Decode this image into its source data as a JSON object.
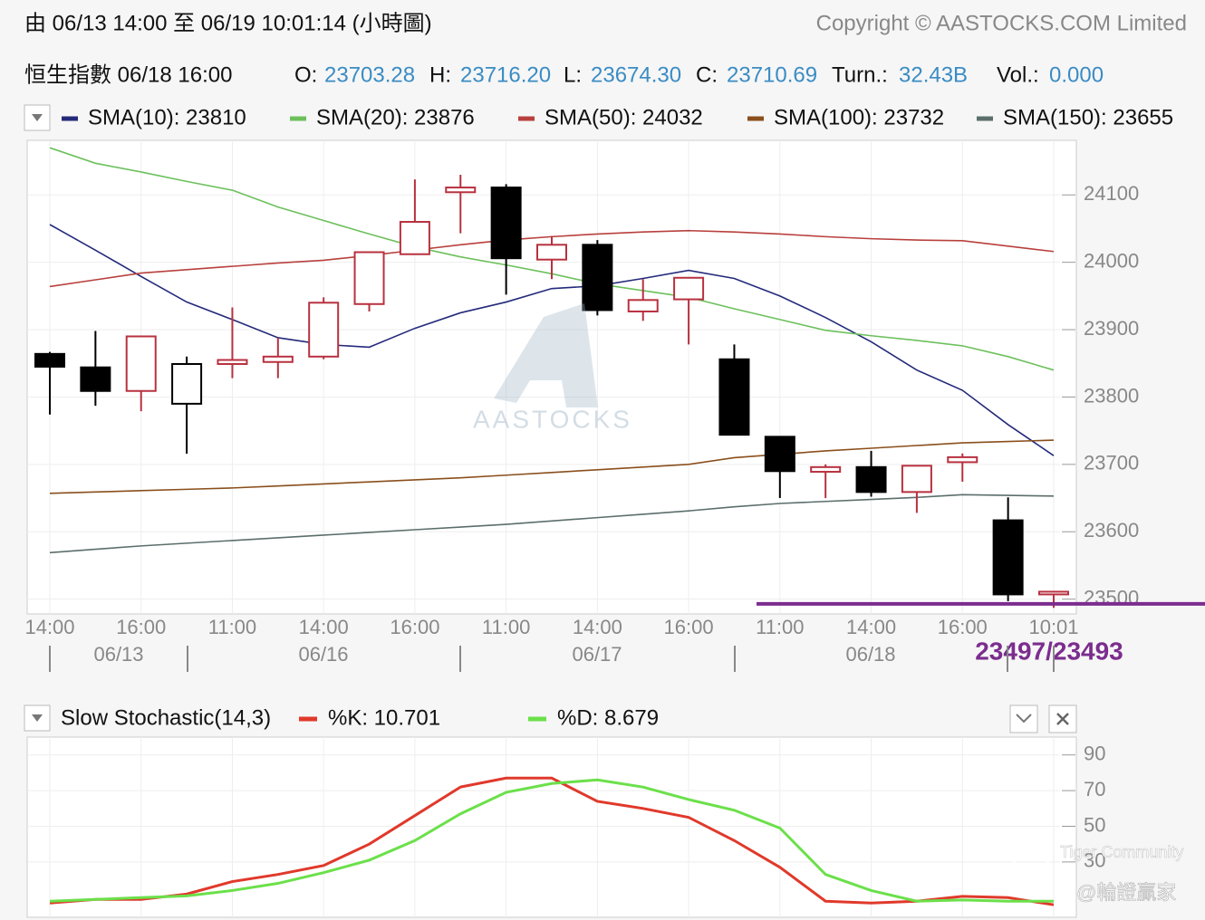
{
  "header": {
    "title": "由  06/13 14:00 至  06/19 10:01:14 (小時圖)",
    "copyright": "Copyright © AASTOCKS.COM Limited",
    "instrument": "恒生指數  06/18 16:00",
    "fields": [
      {
        "label": "O:",
        "value": "23703.28"
      },
      {
        "label": "H:",
        "value": "23716.20"
      },
      {
        "label": "L:",
        "value": "23674.30"
      },
      {
        "label": "C:",
        "value": "23710.69"
      },
      {
        "label": "Turn.:",
        "value": "32.43B"
      },
      {
        "label": "Vol.:",
        "value": "0.000"
      }
    ]
  },
  "watermarks": [
    "AASTOCKS",
    "Tiger Community",
    "@輪證贏家"
  ],
  "chart_data": [
    {
      "type": "candlestick",
      "categories": [
        "14:00",
        null,
        "16:00",
        null,
        "11:00",
        null,
        "14:00",
        null,
        "16:00",
        null,
        "11:00",
        null,
        "14:00",
        null,
        "16:00",
        null,
        "11:00",
        null,
        "14:00",
        null,
        "16:00",
        null,
        "10:01"
      ],
      "dates": [
        "06/13",
        "06/16",
        "06/17",
        "06/18"
      ],
      "open": [
        23864,
        23844,
        23809,
        23790,
        23849,
        23852,
        23860,
        23938,
        24012,
        24104,
        24111,
        24004,
        24026,
        23927,
        23945,
        23856,
        23741,
        23689,
        23696,
        23659,
        23703.28,
        23617,
        23507
      ],
      "high": [
        23867,
        23898,
        23890,
        23860,
        23933,
        23888,
        23948,
        24015,
        24123,
        24130,
        24116,
        24039,
        24033,
        23975,
        23977,
        23878,
        23741,
        23700,
        23720,
        23698,
        23716.2,
        23651,
        23511
      ],
      "low": [
        23774,
        23787,
        23779,
        23716,
        23828,
        23828,
        23856,
        23927,
        24012,
        24043,
        23952,
        23975,
        23921,
        23913,
        23878,
        23744,
        23650,
        23650,
        23652,
        23628,
        23674.3,
        23497,
        23487
      ],
      "close": [
        23845,
        23809,
        23890,
        23849,
        23855,
        23860,
        23940,
        24015,
        24060,
        24111,
        24006,
        24026,
        23929,
        23944,
        23977,
        23744,
        23690,
        23696,
        23659,
        23698,
        23710.69,
        23507,
        23511
      ],
      "up_color": "#b8313f",
      "down_color": "#000000",
      "series": [
        {
          "name": "SMA(10): 23810",
          "color": "#232a7a",
          "values": [
            24056,
            24018,
            23979,
            23941,
            23915,
            23888,
            23878,
            23874,
            23902,
            23925,
            23941,
            23961,
            23965,
            23976,
            23988,
            23976,
            23950,
            23918,
            23882,
            23840,
            23810,
            23759,
            23713
          ]
        },
        {
          "name": "SMA(20): 23876",
          "color": "#6cc05c",
          "values": [
            24170,
            24147,
            24134,
            24120,
            24107,
            24082,
            24062,
            24042,
            24023,
            24008,
            23996,
            23983,
            23968,
            23958,
            23948,
            23931,
            23915,
            23899,
            23891,
            23884,
            23876,
            23860,
            23840
          ]
        },
        {
          "name": "SMA(50): 24032",
          "color": "#b8403d",
          "values": [
            23964,
            23974,
            23984,
            23989,
            23994,
            23999,
            24003,
            24010,
            24018,
            24026,
            24033,
            24038,
            24042,
            24045,
            24047,
            24045,
            24042,
            24038,
            24035,
            24033,
            24032,
            24024,
            24016
          ]
        },
        {
          "name": "SMA(100): 23732",
          "color": "#8a4f1c",
          "values": [
            23657,
            23659,
            23661,
            23663,
            23665,
            23668,
            23671,
            23674,
            23677,
            23680,
            23684,
            23688,
            23692,
            23696,
            23700,
            23710,
            23715,
            23720,
            23724,
            23728,
            23732,
            23734,
            23736
          ]
        },
        {
          "name": "SMA(150): 23655",
          "color": "#5b6e6b",
          "values": [
            23569,
            23574,
            23579,
            23583,
            23587,
            23591,
            23595,
            23599,
            23603,
            23607,
            23611,
            23616,
            23621,
            23626,
            23631,
            23637,
            23642,
            23645,
            23648,
            23651,
            23655,
            23654,
            23653
          ]
        }
      ],
      "ylim": [
        23478,
        24181
      ],
      "yticks": [
        23500,
        23600,
        23700,
        23800,
        23900,
        24000,
        24100
      ],
      "grid": true,
      "price_line": {
        "value": 23493,
        "label": "23497/23493",
        "color": "#7b2d8e"
      }
    },
    {
      "type": "line",
      "title": "Slow Stochastic(14,3)",
      "series": [
        {
          "name": "%K: 10.701",
          "color": "#e0392b",
          "values": [
            7,
            9,
            9,
            12,
            19,
            23,
            28,
            40,
            56,
            72,
            77,
            77,
            64,
            60,
            55,
            42,
            27,
            8,
            7,
            8,
            10.7,
            10,
            6
          ]
        },
        {
          "name": "%D: 8.679",
          "color": "#6be04a",
          "values": [
            8,
            9,
            10,
            11,
            14,
            18,
            24,
            31,
            42,
            57,
            69,
            74,
            76,
            72,
            65,
            59,
            49,
            23,
            14,
            8,
            8.7,
            8,
            8
          ]
        }
      ],
      "ylim": [
        0,
        100
      ],
      "yticks": [
        30,
        50,
        70,
        90
      ],
      "grid": true
    }
  ]
}
